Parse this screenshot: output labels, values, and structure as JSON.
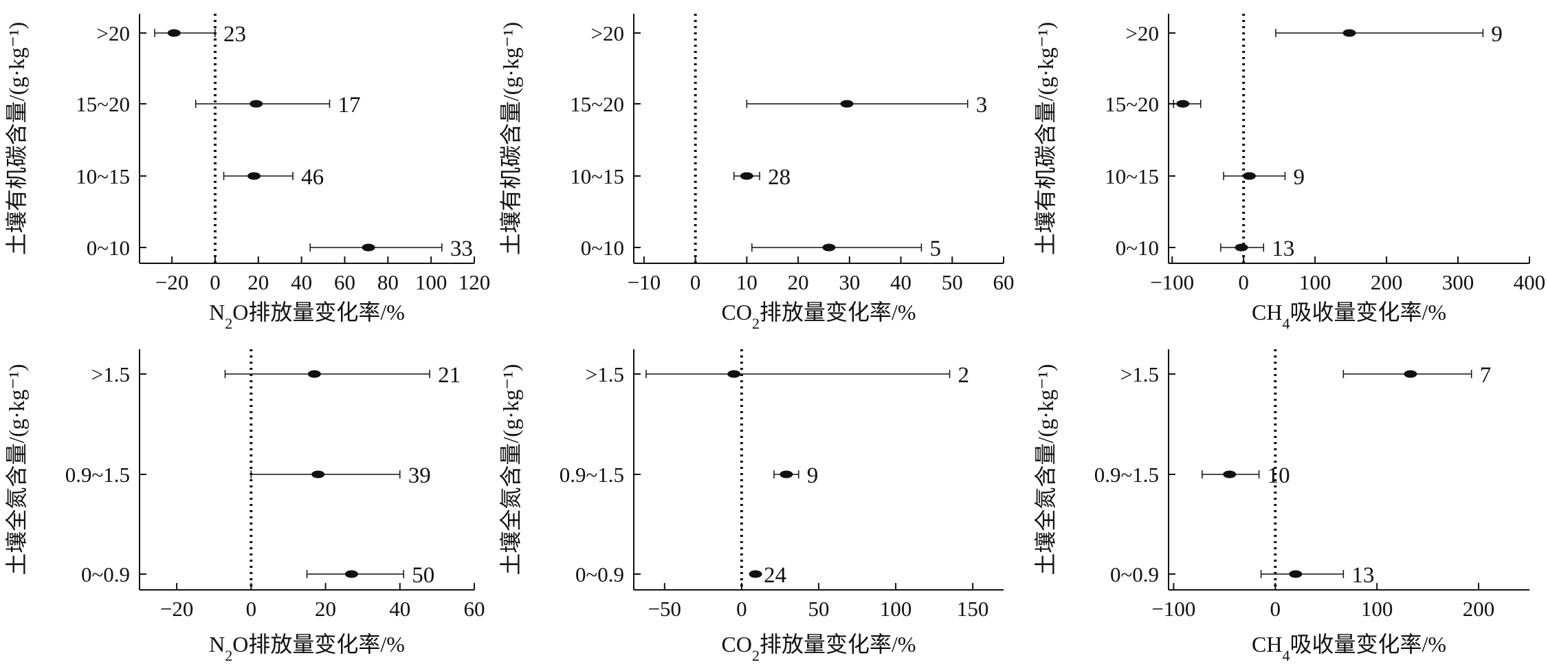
{
  "chart_data": [
    {
      "type": "forest",
      "ylabel": "土壤有机碳含量/(g·kg⁻¹)",
      "xlabel_prefix": "N",
      "xlabel_sub": "2",
      "xlabel_rest": "O排放量变化率/%",
      "xlim": [
        -35,
        120
      ],
      "xticks": [
        -20,
        0,
        20,
        40,
        60,
        80,
        100,
        120
      ],
      "xtick_labels": [
        "−20",
        "0",
        "20",
        "40",
        "60",
        "80",
        "100",
        "120"
      ],
      "categories": [
        ">20",
        "15~20",
        "10~15",
        "0~10"
      ],
      "mean": [
        -19,
        19,
        18,
        71
      ],
      "ci_low": [
        -28,
        -9,
        4,
        44
      ],
      "ci_high": [
        0,
        53,
        36,
        105
      ],
      "n": [
        "23",
        "17",
        "46",
        "33"
      ]
    },
    {
      "type": "forest",
      "ylabel": "土壤有机碳含量/(g·kg⁻¹)",
      "xlabel_prefix": "CO",
      "xlabel_sub": "2",
      "xlabel_rest": "排放量变化率/%",
      "xlim": [
        -12,
        60
      ],
      "xticks": [
        -10,
        0,
        10,
        20,
        30,
        40,
        50,
        60
      ],
      "xtick_labels": [
        "−10",
        "0",
        "10",
        "20",
        "30",
        "40",
        "50",
        "60"
      ],
      "categories": [
        ">20",
        "15~20",
        "10~15",
        "0~10"
      ],
      "mean": [
        null,
        29.5,
        10,
        26
      ],
      "ci_low": [
        null,
        10,
        7.5,
        11
      ],
      "ci_high": [
        null,
        53,
        12.5,
        44
      ],
      "n": [
        "",
        "3",
        "28",
        "5"
      ]
    },
    {
      "type": "forest",
      "ylabel": "土壤有机碳含量/(g·kg⁻¹)",
      "xlabel_prefix": "CH",
      "xlabel_sub": "4",
      "xlabel_rest": "吸收量变化率/%",
      "xlim": [
        -105,
        400
      ],
      "xticks": [
        -100,
        0,
        100,
        200,
        300,
        400
      ],
      "xtick_labels": [
        "−100",
        "0",
        "100",
        "200",
        "300",
        "400"
      ],
      "categories": [
        ">20",
        "15~20",
        "10~15",
        "0~10"
      ],
      "mean": [
        148,
        -85,
        8,
        -3
      ],
      "ci_low": [
        45,
        -98,
        -28,
        -32
      ],
      "ci_high": [
        335,
        -60,
        58,
        28
      ],
      "n": [
        "9",
        "",
        "9",
        "13"
      ]
    },
    {
      "type": "forest",
      "ylabel": "土壤全氮含量/(g·kg⁻¹)",
      "xlabel_prefix": "N",
      "xlabel_sub": "2",
      "xlabel_rest": "O排放量变化率/%",
      "xlim": [
        -30,
        60
      ],
      "xticks": [
        -20,
        0,
        20,
        40,
        60
      ],
      "xtick_labels": [
        "−20",
        "0",
        "20",
        "40",
        "60"
      ],
      "categories": [
        ">1.5",
        "0.9~1.5",
        "0~0.9"
      ],
      "mean": [
        17,
        18,
        27
      ],
      "ci_low": [
        -7,
        0,
        15
      ],
      "ci_high": [
        48,
        40,
        41
      ],
      "n": [
        "21",
        "39",
        "50"
      ]
    },
    {
      "type": "forest",
      "ylabel": "土壤全氮含量/(g·kg⁻¹)",
      "xlabel_prefix": "CO",
      "xlabel_sub": "2",
      "xlabel_rest": "排放量变化率/%",
      "xlim": [
        -70,
        170
      ],
      "xticks": [
        -50,
        0,
        50,
        100,
        150
      ],
      "xtick_labels": [
        "−50",
        "0",
        "50",
        "100",
        "150"
      ],
      "categories": [
        ">1.5",
        "0.9~1.5",
        "0~0.9"
      ],
      "mean": [
        -5,
        29,
        9
      ],
      "ci_low": [
        -62,
        21,
        null
      ],
      "ci_high": [
        135,
        37,
        null
      ],
      "n": [
        "2",
        "9",
        "24"
      ]
    },
    {
      "type": "forest",
      "ylabel": "土壤全氮含量/(g·kg⁻¹)",
      "xlabel_prefix": "CH",
      "xlabel_sub": "4",
      "xlabel_rest": "吸收量变化率/%",
      "xlim": [
        -105,
        250
      ],
      "xticks": [
        -100,
        0,
        100,
        200
      ],
      "xtick_labels": [
        "−100",
        "0",
        "100",
        "200"
      ],
      "categories": [
        ">1.5",
        "0.9~1.5",
        "0~0.9"
      ],
      "mean": [
        133,
        -45,
        20
      ],
      "ci_low": [
        67,
        -72,
        -14
      ],
      "ci_high": [
        193,
        -16,
        67
      ],
      "n": [
        "7",
        "10",
        "13"
      ]
    }
  ]
}
